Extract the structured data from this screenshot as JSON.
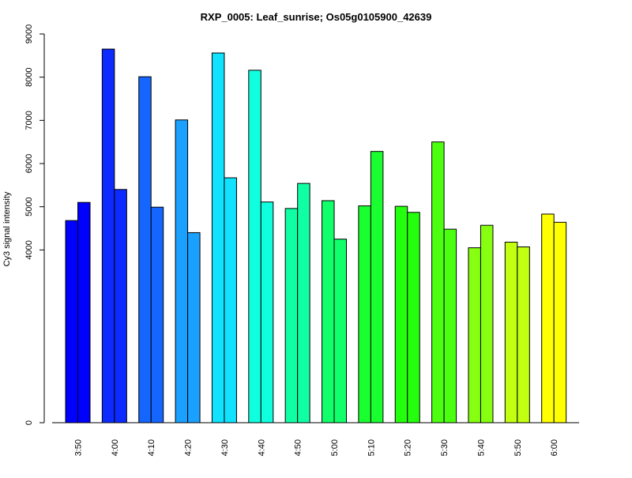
{
  "chart_data": {
    "type": "bar",
    "title": "RXP_0005: Leaf_sunrise; Os05g0105900_42639",
    "ylabel": "Cy3 signal intensity",
    "xlabel": "",
    "ylim": [
      0,
      9000
    ],
    "yticks": [
      0,
      4000,
      5000,
      6000,
      7000,
      8000,
      9000
    ],
    "grid": false,
    "categories": [
      "3:50",
      "4:00",
      "4:10",
      "4:20",
      "4:30",
      "4:40",
      "4:50",
      "5:00",
      "5:10",
      "5:20",
      "5:30",
      "5:40",
      "5:50",
      "6:00"
    ],
    "series": [
      {
        "values": [
          4680,
          8650,
          8010,
          7010,
          8560,
          8160,
          4960,
          5140,
          5020,
          5010,
          6500,
          4050,
          4180,
          4830
        ]
      },
      {
        "values": [
          5100,
          5400,
          4990,
          4400,
          5670,
          5110,
          5540,
          4250,
          6280,
          4870,
          4480,
          4570,
          4070,
          4640
        ]
      }
    ],
    "colors": [
      "#0000ff",
      "#0d2bff",
      "#1565ff",
      "#1aa0ff",
      "#10e2ff",
      "#10ffdf",
      "#10ffa4",
      "#10ff6a",
      "#1aff30",
      "#24ff0d",
      "#4cff10",
      "#86ff10",
      "#c2ff10",
      "#ffff00"
    ]
  }
}
